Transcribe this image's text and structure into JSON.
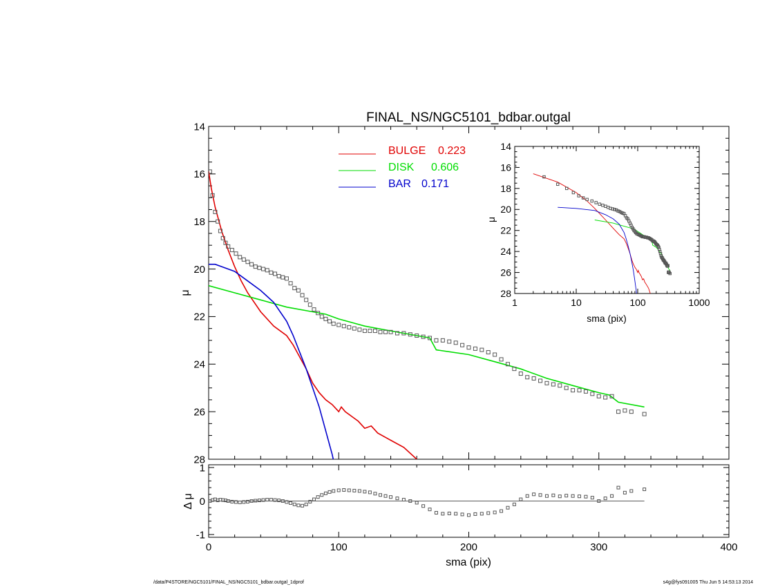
{
  "footer": {
    "path": "/data/P4STORE/NGC5101/FINAL_NS/NGC5101_bdbar.outgal_1dprof",
    "stamp": "s4g@fys091005  Thu Jun  5 14:53:13 2014"
  },
  "colors": {
    "bulge": "#e00000",
    "disk": "#00dd00",
    "bar": "#0000cc",
    "data": "#555555",
    "axis": "#000000"
  },
  "chart_data": [
    {
      "id": "main",
      "type": "line",
      "title": "FINAL_NS/NGC5101_bdbar.outgal",
      "xlabel": "",
      "ylabel": "μ",
      "xlim": [
        0,
        400
      ],
      "ylim": [
        28,
        14
      ],
      "yticks": [
        14,
        16,
        18,
        20,
        22,
        24,
        26,
        28
      ],
      "legend": {
        "placement": "top-center",
        "entries": [
          {
            "key": "bulge",
            "label": "BULGE",
            "value": "0.223"
          },
          {
            "key": "disk",
            "label": "DISK",
            "value": "0.606"
          },
          {
            "key": "bar",
            "label": "BAR",
            "value": "0.171"
          }
        ]
      },
      "series": [
        {
          "name": "BULGE",
          "key": "bulge",
          "x": [
            0,
            2,
            5,
            10,
            15,
            20,
            25,
            30,
            40,
            50,
            60,
            65,
            70,
            75,
            80,
            85,
            90,
            95,
            100,
            102,
            105,
            110,
            115,
            120,
            125,
            130,
            140,
            150,
            160
          ],
          "y": [
            15.9,
            16.6,
            17.4,
            18.4,
            19.2,
            19.9,
            20.5,
            21.0,
            21.8,
            22.4,
            22.8,
            23.2,
            23.7,
            24.2,
            24.8,
            25.2,
            25.5,
            25.7,
            26.0,
            25.8,
            26.0,
            26.2,
            26.4,
            26.7,
            26.6,
            26.9,
            27.2,
            27.5,
            28.0
          ]
        },
        {
          "name": "DISK",
          "key": "disk",
          "x": [
            0,
            20,
            40,
            60,
            80,
            90,
            100,
            110,
            120,
            140,
            160,
            170,
            175,
            200,
            220,
            240,
            260,
            280,
            300,
            308,
            315,
            335
          ],
          "y": [
            20.7,
            21.0,
            21.3,
            21.6,
            21.8,
            21.9,
            22.1,
            22.25,
            22.4,
            22.6,
            22.8,
            22.9,
            23.4,
            23.6,
            23.9,
            24.2,
            24.6,
            24.9,
            25.2,
            25.3,
            25.6,
            25.8
          ]
        },
        {
          "name": "BAR",
          "key": "bar",
          "x": [
            0,
            5,
            10,
            20,
            30,
            40,
            50,
            60,
            65,
            70,
            75,
            80,
            85,
            90,
            95,
            97
          ],
          "y": [
            19.8,
            19.8,
            19.9,
            20.1,
            20.5,
            20.9,
            21.4,
            22.2,
            22.8,
            23.5,
            24.2,
            25.0,
            25.8,
            26.8,
            27.8,
            28.3
          ]
        },
        {
          "name": "data",
          "key": "data",
          "x": [
            1,
            3,
            5,
            7,
            9,
            11,
            13,
            15,
            18,
            21,
            24,
            27,
            30,
            33,
            36,
            39,
            42,
            45,
            48,
            51,
            54,
            57,
            60,
            63,
            66,
            69,
            72,
            75,
            78,
            81,
            84,
            87,
            90,
            93,
            96,
            100,
            104,
            108,
            112,
            116,
            120,
            124,
            128,
            132,
            136,
            140,
            145,
            150,
            155,
            160,
            165,
            170,
            175,
            180,
            185,
            190,
            195,
            200,
            205,
            210,
            215,
            220,
            225,
            230,
            235,
            240,
            245,
            250,
            255,
            260,
            265,
            270,
            275,
            280,
            285,
            290,
            295,
            300,
            305,
            310,
            315,
            320,
            325,
            335
          ],
          "y": [
            15.9,
            16.9,
            17.6,
            18.0,
            18.4,
            18.7,
            18.9,
            19.05,
            19.2,
            19.35,
            19.5,
            19.6,
            19.7,
            19.8,
            19.9,
            19.95,
            20.0,
            20.05,
            20.15,
            20.2,
            20.3,
            20.35,
            20.4,
            20.6,
            20.8,
            20.9,
            21.1,
            21.3,
            21.5,
            21.7,
            21.85,
            22.0,
            22.1,
            22.2,
            22.3,
            22.35,
            22.4,
            22.45,
            22.5,
            22.55,
            22.6,
            22.6,
            22.6,
            22.65,
            22.65,
            22.65,
            22.7,
            22.7,
            22.75,
            22.8,
            22.85,
            22.9,
            23.0,
            23.0,
            23.05,
            23.1,
            23.2,
            23.3,
            23.35,
            23.4,
            23.5,
            23.6,
            23.8,
            24.0,
            24.2,
            24.4,
            24.55,
            24.6,
            24.7,
            24.8,
            24.85,
            24.9,
            25.0,
            25.1,
            25.1,
            25.15,
            25.25,
            25.35,
            25.4,
            25.35,
            26.0,
            25.95,
            26.0,
            26.1
          ]
        }
      ]
    },
    {
      "id": "inset",
      "type": "line",
      "xlabel": "sma (pix)",
      "ylabel": "μ",
      "xscale": "log",
      "xlim": [
        1,
        1000
      ],
      "xticks": [
        1,
        10,
        100,
        1000
      ],
      "ylim": [
        28,
        14
      ],
      "yticks": [
        14,
        16,
        18,
        20,
        22,
        24,
        26,
        28
      ]
    },
    {
      "id": "residual",
      "type": "scatter",
      "xlabel": "sma (pix)",
      "ylabel": "Δ μ",
      "xlim": [
        0,
        400
      ],
      "xticks": [
        0,
        100,
        200,
        300,
        400
      ],
      "ylim": [
        -1,
        1
      ],
      "yticks": [
        1,
        0,
        -1
      ],
      "x": [
        1,
        3,
        5,
        7,
        9,
        11,
        13,
        15,
        18,
        21,
        24,
        27,
        30,
        33,
        36,
        39,
        42,
        45,
        48,
        51,
        54,
        57,
        60,
        63,
        66,
        69,
        72,
        75,
        78,
        81,
        84,
        87,
        90,
        93,
        96,
        100,
        104,
        108,
        112,
        116,
        120,
        124,
        128,
        132,
        136,
        140,
        145,
        150,
        155,
        160,
        165,
        170,
        175,
        180,
        185,
        190,
        195,
        200,
        205,
        210,
        215,
        220,
        225,
        230,
        235,
        240,
        245,
        250,
        255,
        260,
        265,
        270,
        275,
        280,
        285,
        290,
        295,
        300,
        305,
        310,
        315,
        320,
        325,
        335
      ],
      "y": [
        0.0,
        0.03,
        0.05,
        0.02,
        0.04,
        0.03,
        0.02,
        0.0,
        -0.02,
        -0.03,
        -0.04,
        -0.03,
        -0.02,
        0.0,
        0.01,
        0.02,
        0.03,
        0.04,
        0.04,
        0.03,
        0.02,
        0.0,
        -0.03,
        -0.06,
        -0.1,
        -0.13,
        -0.14,
        -0.1,
        -0.02,
        0.05,
        0.12,
        0.18,
        0.23,
        0.27,
        0.3,
        0.32,
        0.33,
        0.32,
        0.31,
        0.3,
        0.28,
        0.26,
        0.22,
        0.18,
        0.15,
        0.12,
        0.08,
        0.04,
        0.0,
        -0.05,
        -0.15,
        -0.25,
        -0.35,
        -0.38,
        -0.37,
        -0.38,
        -0.4,
        -0.42,
        -0.39,
        -0.38,
        -0.36,
        -0.34,
        -0.3,
        -0.2,
        -0.1,
        0.05,
        0.15,
        0.2,
        0.18,
        0.15,
        0.17,
        0.14,
        0.16,
        0.15,
        0.14,
        0.13,
        0.1,
        0.0,
        0.08,
        0.15,
        0.4,
        0.25,
        0.3,
        0.35
      ]
    }
  ]
}
